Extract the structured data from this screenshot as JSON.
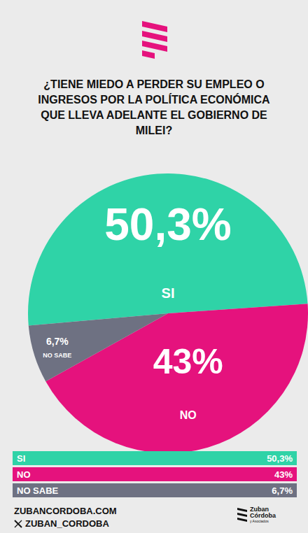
{
  "chart_data": {
    "type": "pie",
    "title": "¿TIENE MIEDO A PERDER SU EMPLEO O INGRESOS POR LA POLÍTICA ECONÓMICA QUE LLEVA ADELANTE EL GOBIERNO DE MILEI?",
    "categories": [
      "SI",
      "NO",
      "NO SABE"
    ],
    "values": [
      50.3,
      43,
      6.7
    ],
    "value_labels": [
      "50,3%",
      "43%",
      "6,7%"
    ],
    "colors": [
      "#2fd3a7",
      "#e5127d",
      "#6e7182"
    ],
    "data_labels": true
  },
  "footer": {
    "website": "ZUBANCORDOBA.COM",
    "handle": "ZUBAN_CORDOBA",
    "logo": [
      "Zuban",
      "Córdoba",
      "y Asociados"
    ]
  }
}
